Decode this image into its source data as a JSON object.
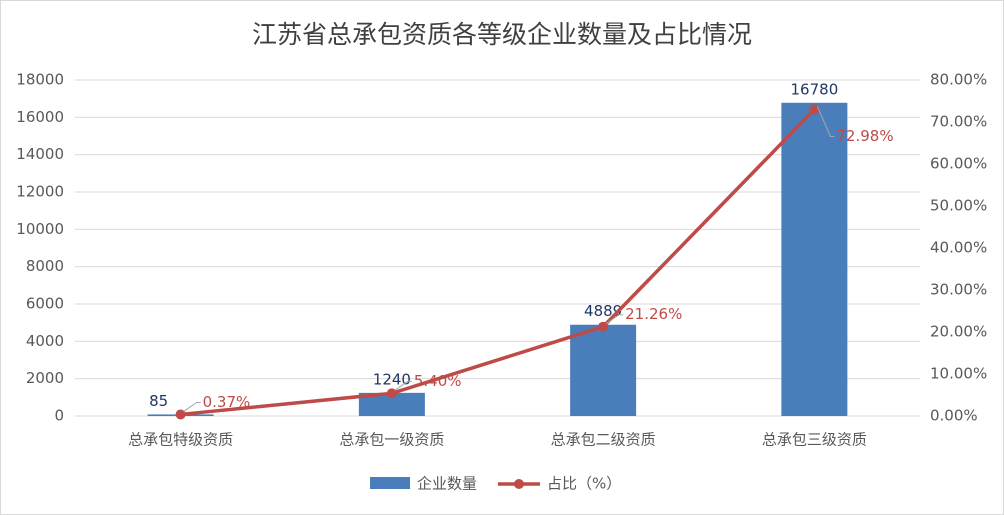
{
  "chart_data": {
    "type": "bar_line",
    "title": "江苏省总承包资质各等级企业数量及占比情况",
    "categories": [
      "总承包特级资质",
      "总承包一级资质",
      "总承包二级资质",
      "总承包三级资质"
    ],
    "series": [
      {
        "name": "企业数量",
        "color": "#4a7ebb",
        "type": "bar",
        "values": [
          85,
          1240,
          4889,
          16780
        ]
      },
      {
        "name": "占比（%）",
        "color": "#be4b48",
        "type": "line",
        "axis": "y2",
        "values": [
          0.37,
          5.4,
          21.26,
          72.98
        ],
        "value_labels": [
          "0.37%",
          "5.40%",
          "21.26%",
          "72.98%"
        ]
      }
    ],
    "ylim": [
      0,
      18000
    ],
    "yticks": [
      0,
      2000,
      4000,
      6000,
      8000,
      10000,
      12000,
      14000,
      16000,
      18000
    ],
    "y2lim": [
      0,
      80
    ],
    "y2ticks": [
      {
        "value": 0,
        "label": "0.00%"
      },
      {
        "value": 10,
        "label": "10.00%"
      },
      {
        "value": 20,
        "label": "20.00%"
      },
      {
        "value": 30,
        "label": "30.00%"
      },
      {
        "value": 40,
        "label": "40.00%"
      },
      {
        "value": 50,
        "label": "50.00%"
      },
      {
        "value": 60,
        "label": "60.00%"
      },
      {
        "value": 70,
        "label": "70.00%"
      },
      {
        "value": 80,
        "label": "80.00%"
      }
    ],
    "grid": true,
    "legend": "bottom"
  }
}
